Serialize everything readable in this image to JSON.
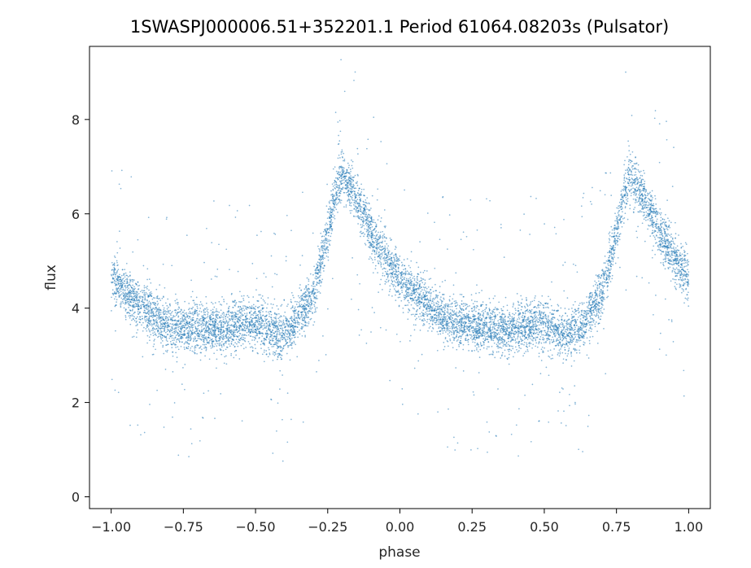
{
  "chart_data": {
    "type": "scatter",
    "title": "1SWASPJ000006.51+352201.1 Period 61064.08203s (Pulsator)",
    "xlabel": "phase",
    "ylabel": "flux",
    "xlim": [
      -1.075,
      1.075
    ],
    "ylim": [
      -0.25,
      9.55
    ],
    "x_ticks": [
      -1.0,
      -0.75,
      -0.5,
      -0.25,
      0.0,
      0.25,
      0.5,
      0.75,
      1.0
    ],
    "x_tick_labels": [
      "−1.00",
      "−0.75",
      "−0.50",
      "−0.25",
      "0.00",
      "0.25",
      "0.50",
      "0.75",
      "1.00"
    ],
    "y_ticks": [
      0,
      2,
      4,
      6,
      8
    ],
    "y_tick_labels": [
      "0",
      "2",
      "4",
      "6",
      "8"
    ],
    "grid": false,
    "legend": "none",
    "marker_color": "#1f77b4",
    "light_curve": {
      "phase": [
        -0.5,
        -0.45,
        -0.42,
        -0.4,
        -0.38,
        -0.3,
        -0.25,
        -0.22,
        -0.2,
        -0.15,
        -0.1,
        -0.05,
        0.0,
        0.05,
        0.1,
        0.15,
        0.2,
        0.25,
        0.3,
        0.35,
        0.4,
        0.45,
        0.5
      ],
      "flux": [
        3.65,
        3.5,
        3.45,
        3.45,
        3.55,
        4.3,
        5.6,
        6.5,
        6.85,
        6.3,
        5.6,
        5.05,
        4.65,
        4.35,
        4.05,
        3.8,
        3.65,
        3.6,
        3.6,
        3.55,
        3.55,
        3.65,
        3.65
      ],
      "scatter_sigma": 0.25,
      "outlier_fraction": 0.045
    }
  }
}
